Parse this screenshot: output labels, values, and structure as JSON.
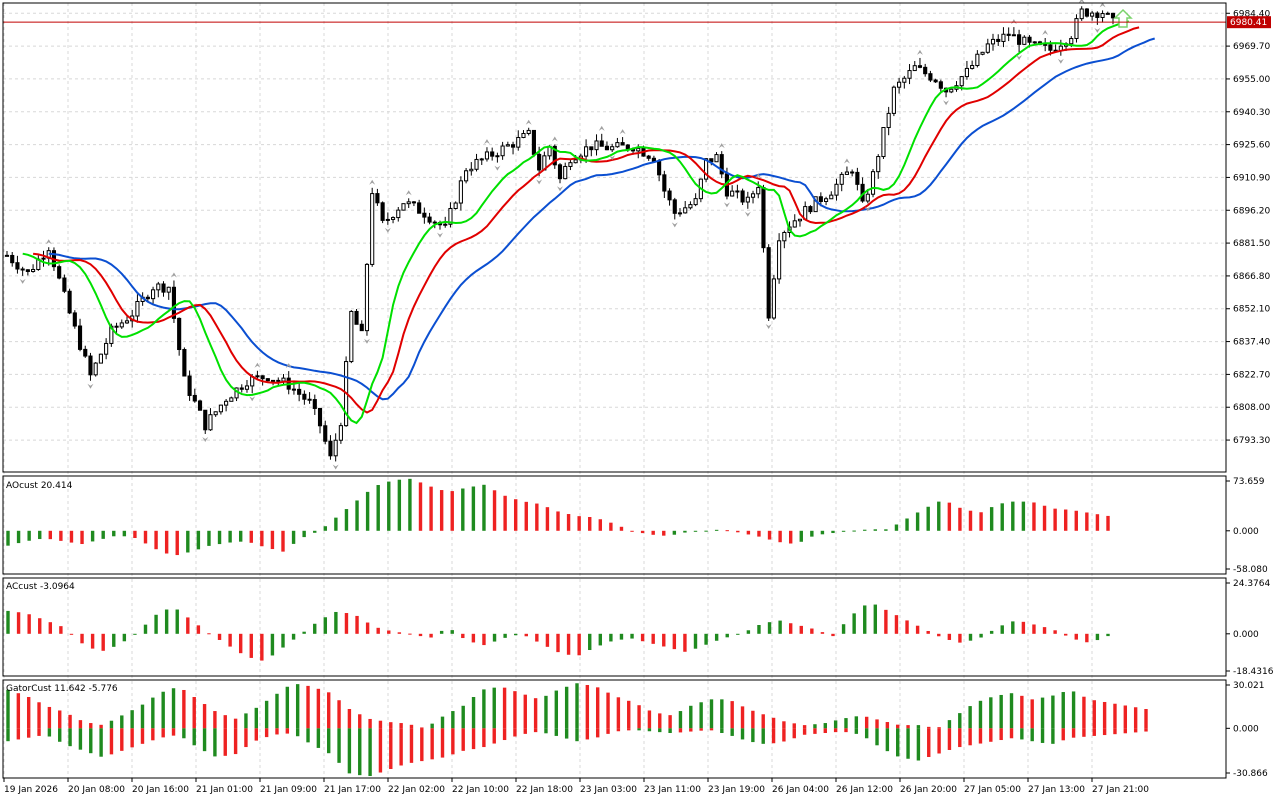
{
  "colors": {
    "background": "#ffffff",
    "grid": "#d8d8d8",
    "frame": "#000000",
    "bull": "#000000",
    "bear": "#000000",
    "jaw": "#0b4fd1",
    "teeth": "#e00000",
    "lips": "#00e000",
    "osc_up": "#1f8a1f",
    "osc_down": "#ee2222",
    "price_line": "#c00000",
    "fractal": "#a0a0a0",
    "arrow_up": "#7bd36b"
  },
  "main": {
    "price_labels": [
      "6984.40",
      "6969.70",
      "6955.00",
      "6940.30",
      "6925.60",
      "6910.90",
      "6896.20",
      "6881.50",
      "6866.80",
      "6852.10",
      "6837.40",
      "6822.70",
      "6808.00",
      "6793.30"
    ],
    "current_price": "6980.41",
    "ylim": [
      6779,
      6989
    ]
  },
  "time_labels": [
    "19 Jan 2026",
    "20 Jan 08:00",
    "20 Jan 16:00",
    "21 Jan 01:00",
    "21 Jan 09:00",
    "21 Jan 17:00",
    "22 Jan 02:00",
    "22 Jan 10:00",
    "22 Jan 18:00",
    "23 Jan 03:00",
    "23 Jan 11:00",
    "23 Jan 19:00",
    "26 Jan 04:00",
    "26 Jan 12:00",
    "26 Jan 20:00",
    "27 Jan 05:00",
    "27 Jan 13:00",
    "27 Jan 21:00"
  ],
  "ao": {
    "title": "AOcust 20.414",
    "labels": [
      "73.659",
      "0.000",
      "-58.080"
    ],
    "range": [
      -58.08,
      73.659
    ]
  },
  "ac": {
    "title": "ACcust -3.0964",
    "labels": [
      "24.3764",
      "0.000",
      "-18.4316"
    ],
    "range": [
      -18.4316,
      24.3764
    ]
  },
  "gator": {
    "title": "GatorCust 11.642 -5.776",
    "labels": [
      "30.021",
      "0.000",
      "-30.866"
    ],
    "range": [
      -30.866,
      30.021
    ]
  },
  "chart_data": {
    "type": "candlestick",
    "anchors": [
      [
        0,
        6876
      ],
      [
        4,
        6868
      ],
      [
        8,
        6880
      ],
      [
        12,
        6850
      ],
      [
        16,
        6822
      ],
      [
        20,
        6842
      ],
      [
        24,
        6850
      ],
      [
        28,
        6862
      ],
      [
        31,
        6862
      ],
      [
        34,
        6820
      ],
      [
        38,
        6800
      ],
      [
        42,
        6812
      ],
      [
        46,
        6820
      ],
      [
        50,
        6822
      ],
      [
        54,
        6818
      ],
      [
        58,
        6810
      ],
      [
        60,
        6800
      ],
      [
        62,
        6785
      ],
      [
        64,
        6802
      ],
      [
        66,
        6850
      ],
      [
        68,
        6840
      ],
      [
        70,
        6905
      ],
      [
        72,
        6890
      ],
      [
        76,
        6900
      ],
      [
        80,
        6895
      ],
      [
        84,
        6888
      ],
      [
        88,
        6915
      ],
      [
        92,
        6920
      ],
      [
        96,
        6925
      ],
      [
        100,
        6930
      ],
      [
        102,
        6915
      ],
      [
        104,
        6925
      ],
      [
        106,
        6910
      ],
      [
        108,
        6920
      ],
      [
        112,
        6925
      ],
      [
        116,
        6924
      ],
      [
        120,
        6925
      ],
      [
        124,
        6920
      ],
      [
        126,
        6905
      ],
      [
        128,
        6895
      ],
      [
        132,
        6900
      ],
      [
        134,
        6918
      ],
      [
        136,
        6920
      ],
      [
        138,
        6905
      ],
      [
        142,
        6900
      ],
      [
        144,
        6908
      ],
      [
        146,
        6850
      ],
      [
        148,
        6885
      ],
      [
        150,
        6890
      ],
      [
        154,
        6898
      ],
      [
        158,
        6905
      ],
      [
        162,
        6915
      ],
      [
        164,
        6898
      ],
      [
        166,
        6912
      ],
      [
        170,
        6950
      ],
      [
        174,
        6960
      ],
      [
        178,
        6955
      ],
      [
        180,
        6950
      ],
      [
        184,
        6958
      ],
      [
        188,
        6970
      ],
      [
        192,
        6975
      ],
      [
        196,
        6970
      ],
      [
        200,
        6968
      ],
      [
        204,
        6975
      ],
      [
        206,
        6985
      ],
      [
        210,
        6985
      ],
      [
        212,
        6980
      ]
    ],
    "ao_series": [
      -20,
      -14,
      -10,
      -14,
      -18,
      -12,
      -6,
      -10,
      -24,
      -34,
      -28,
      -20,
      -16,
      -14,
      -22,
      -28,
      -10,
      0,
      20,
      40,
      60,
      68,
      70,
      60,
      52,
      58,
      62,
      48,
      40,
      36,
      26,
      20,
      18,
      10,
      0,
      -5,
      -7,
      -2,
      0,
      2,
      -3,
      -8,
      -15,
      -18,
      -6,
      -3,
      0,
      2,
      2,
      16,
      30,
      42,
      30,
      24,
      36,
      40,
      38,
      30,
      28,
      24,
      20
    ],
    "ac_series": [
      10,
      9,
      6,
      3,
      -4,
      -8,
      -5,
      0,
      8,
      12,
      6,
      0,
      -5,
      -10,
      -12,
      -6,
      0,
      6,
      10,
      8,
      3,
      1,
      0,
      -2,
      3,
      -3,
      -5,
      -2,
      0,
      -4,
      -8,
      -10,
      -6,
      -3,
      -2,
      -4,
      -6,
      -8,
      -5,
      -2,
      0,
      4,
      6,
      4,
      2,
      -1,
      8,
      14,
      10,
      6,
      2,
      -2,
      -4,
      -2,
      3,
      6,
      4,
      2,
      -2,
      -4,
      -1
    ],
    "gator_up_series": [
      24,
      20,
      14,
      10,
      4,
      2,
      8,
      14,
      22,
      26,
      18,
      10,
      6,
      12,
      20,
      28,
      26,
      22,
      12,
      6,
      4,
      3,
      0,
      8,
      14,
      24,
      26,
      22,
      18,
      24,
      28,
      26,
      20,
      16,
      10,
      8,
      14,
      18,
      18,
      12,
      8,
      4,
      2,
      3,
      6,
      8,
      5,
      2,
      2,
      0,
      8,
      16,
      20,
      22,
      18,
      20,
      24,
      18,
      16,
      14,
      12
    ],
    "gator_down_series": [
      -8,
      -6,
      -4,
      -10,
      -14,
      -18,
      -14,
      -10,
      -6,
      -4,
      -12,
      -18,
      -16,
      -8,
      -4,
      -3,
      -10,
      -16,
      -28,
      -30,
      -26,
      -22,
      -20,
      -18,
      -14,
      -12,
      -8,
      -4,
      -2,
      -5,
      -8,
      -6,
      -2,
      -1,
      -2,
      -3,
      -2,
      -1,
      -4,
      -8,
      -10,
      -8,
      -4,
      -3,
      -2,
      -4,
      -12,
      -18,
      -20,
      -16,
      -12,
      -10,
      -8,
      -6,
      -8,
      -10,
      -6,
      -5,
      -4,
      -3,
      -2
    ],
    "ylabel": "",
    "xlabel": ""
  }
}
